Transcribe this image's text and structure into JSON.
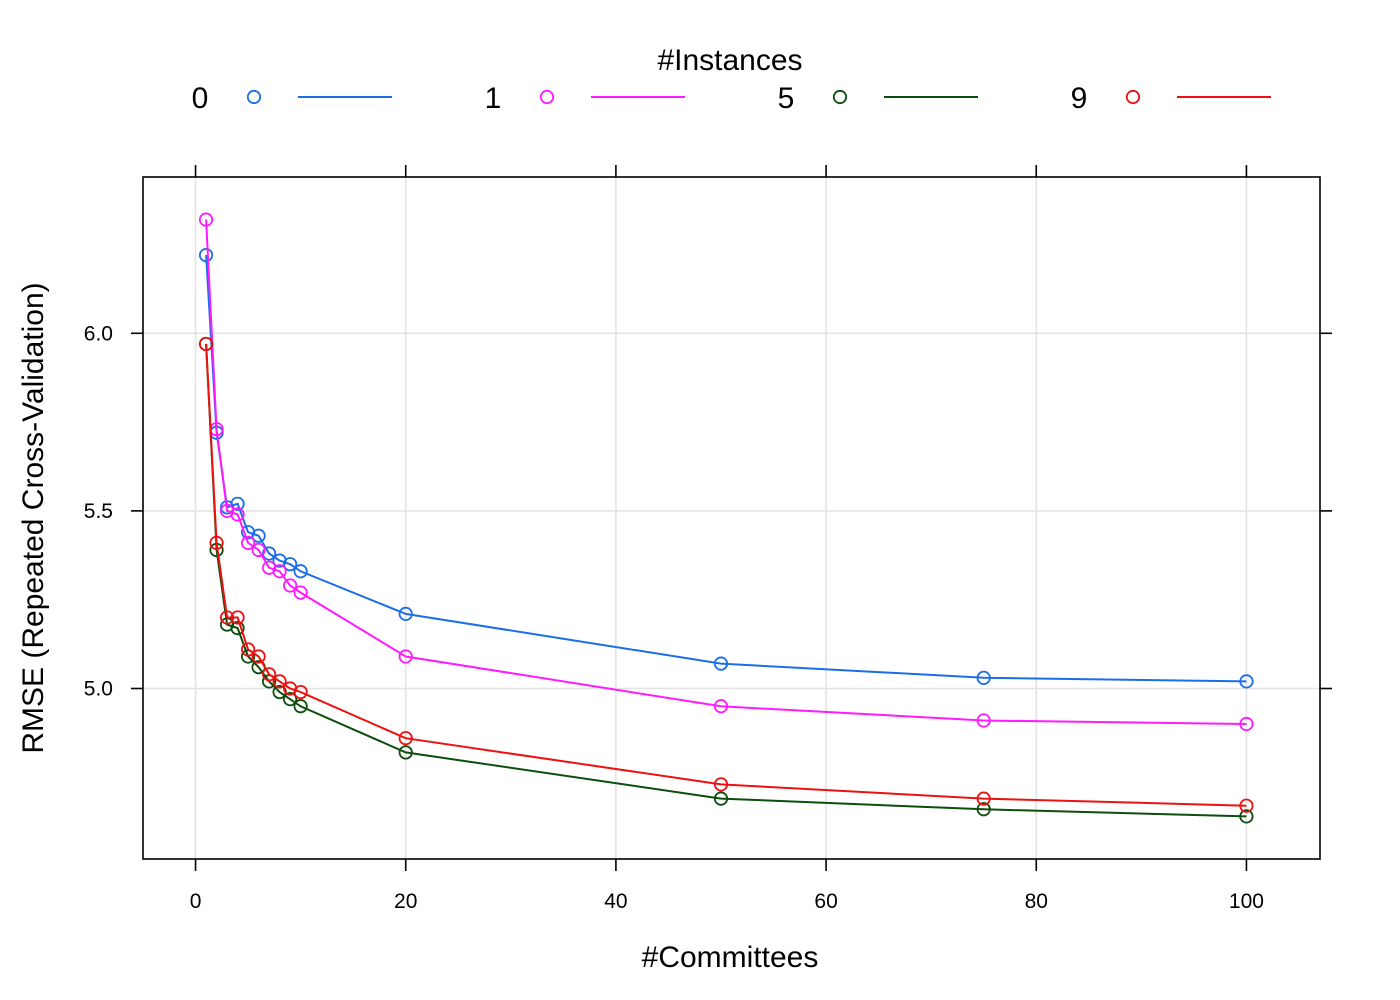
{
  "chart_data": {
    "type": "line",
    "xlabel": "#Committees",
    "ylabel": "RMSE (Repeated Cross-Validation)",
    "xlim": [
      -5,
      107
    ],
    "ylim": [
      4.52,
      6.44
    ],
    "xticks": [
      0,
      20,
      40,
      60,
      80,
      100
    ],
    "yticks": [
      5.0,
      5.5,
      6.0
    ],
    "xtick_labels": [
      "0",
      "20",
      "40",
      "60",
      "80",
      "100"
    ],
    "ytick_labels": [
      "5.0",
      "5.5",
      "6.0"
    ],
    "grid": true,
    "legend": {
      "title": "#Instances",
      "position": "top"
    },
    "x": [
      1,
      2,
      3,
      4,
      5,
      6,
      7,
      8,
      9,
      10,
      20,
      50,
      75,
      100
    ],
    "series": [
      {
        "name": "0",
        "color": "#1a6ee8",
        "values": [
          6.22,
          5.72,
          5.51,
          5.52,
          5.44,
          5.43,
          5.38,
          5.36,
          5.35,
          5.33,
          5.21,
          5.07,
          5.03,
          5.02
        ]
      },
      {
        "name": "1",
        "color": "#ff1aff",
        "values": [
          6.32,
          5.73,
          5.5,
          5.49,
          5.41,
          5.39,
          5.34,
          5.33,
          5.29,
          5.27,
          5.09,
          4.95,
          4.91,
          4.9
        ]
      },
      {
        "name": "5",
        "color": "#0d4d0d",
        "values": [
          5.97,
          5.39,
          5.18,
          5.17,
          5.09,
          5.06,
          5.02,
          4.99,
          4.97,
          4.95,
          4.82,
          4.69,
          4.66,
          4.64
        ]
      },
      {
        "name": "9",
        "color": "#ee1111",
        "values": [
          5.97,
          5.41,
          5.2,
          5.2,
          5.11,
          5.09,
          5.04,
          5.02,
          5.0,
          4.99,
          4.86,
          4.73,
          4.69,
          4.67
        ]
      }
    ]
  }
}
